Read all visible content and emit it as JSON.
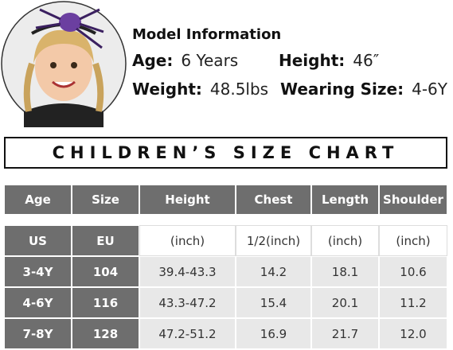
{
  "model": {
    "title": "Model Information",
    "fields": [
      {
        "label": "Age:",
        "value": "6 Years"
      },
      {
        "label": "Height:",
        "value": "46″"
      },
      {
        "label": "Weight:",
        "value": "48.5lbs"
      },
      {
        "label": "Wearing Size:",
        "value": "4-6Y"
      }
    ]
  },
  "chart_title": "CHILDREN’S SIZE CHART",
  "table": {
    "header": [
      "Age",
      "Size",
      "Height",
      "Chest",
      "Length",
      "Shoulder"
    ],
    "rows": [
      [
        "US",
        "EU",
        "(inch)",
        "1/2(inch)",
        "(inch)",
        "(inch)"
      ],
      [
        "3-4Y",
        "104",
        "39.4-43.3",
        "14.2",
        "18.1",
        "10.6"
      ],
      [
        "4-6Y",
        "116",
        "43.3-47.2",
        "15.4",
        "20.1",
        "11.2"
      ],
      [
        "7-8Y",
        "128",
        "47.2-51.2",
        "16.9",
        "21.7",
        "12.0"
      ]
    ]
  }
}
